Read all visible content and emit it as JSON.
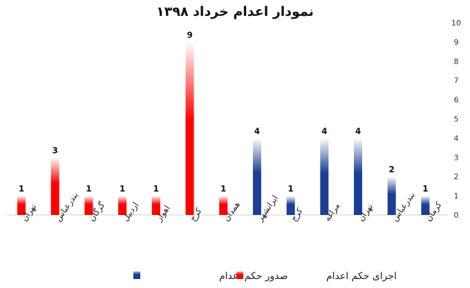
{
  "chart_data": {
    "type": "bar",
    "title": "نمودار اعدام خرداد ۱۳۹۸",
    "xlabel": "",
    "ylabel": "",
    "ylim": [
      0,
      10
    ],
    "yticks": [
      0,
      1,
      2,
      3,
      4,
      5,
      6,
      7,
      8,
      9,
      10
    ],
    "grid": false,
    "legend_position": "bottom",
    "categories": [
      "تهران",
      "بندرعباس",
      "گرگان",
      "اردبیل",
      "اهواز",
      "کرج",
      "همدان",
      "ایرانشهر",
      "کرج",
      "مراغه",
      "تهران",
      "بندرعباس",
      "کرمان"
    ],
    "values": [
      1,
      3,
      1,
      1,
      1,
      9,
      1,
      4,
      1,
      4,
      4,
      2,
      1
    ],
    "series_index": [
      0,
      0,
      0,
      0,
      0,
      0,
      0,
      1,
      1,
      1,
      1,
      1,
      1
    ],
    "series": [
      {
        "name": "اجرای حکم اعدام",
        "color": "#ff0000"
      },
      {
        "name": "صدور حکم اعدام",
        "color": "#1b3f94"
      }
    ]
  }
}
